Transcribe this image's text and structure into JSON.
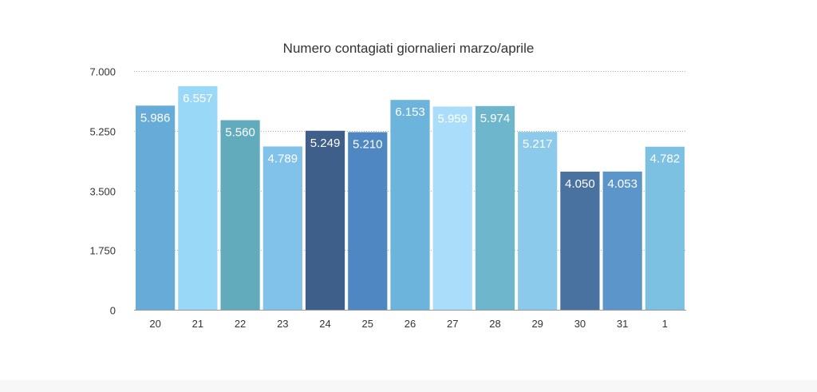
{
  "chart_data": {
    "type": "bar",
    "title": "Numero contagiati giornalieri marzo/aprile",
    "xlabel": "",
    "ylabel": "",
    "categories": [
      "20",
      "21",
      "22",
      "23",
      "24",
      "25",
      "26",
      "27",
      "28",
      "29",
      "30",
      "31",
      "1"
    ],
    "values": [
      5986,
      6557,
      5560,
      4789,
      5249,
      5210,
      6153,
      5959,
      5974,
      5217,
      4050,
      4053,
      4782
    ],
    "value_labels": [
      "5.986",
      "6.557",
      "5.560",
      "4.789",
      "5.249",
      "5.210",
      "6.153",
      "5.959",
      "5.974",
      "5.217",
      "4.050",
      "4.053",
      "4.782"
    ],
    "ylim": [
      0,
      7000
    ],
    "y_ticks": [
      0,
      1750,
      3500,
      5250,
      7000
    ],
    "y_tick_labels": [
      "0",
      "1.750",
      "3.500",
      "5.250",
      "7.000"
    ],
    "grid": true,
    "legend": "none",
    "bar_colors": [
      "#67acd9",
      "#9ad8f8",
      "#62abbd",
      "#80c2ea",
      "#3e5f8a",
      "#4f87c2",
      "#6cb4dc",
      "#a9ddf9",
      "#6db6cb",
      "#8ccaec",
      "#4a72a0",
      "#5b95c9",
      "#7cc0e2"
    ]
  }
}
